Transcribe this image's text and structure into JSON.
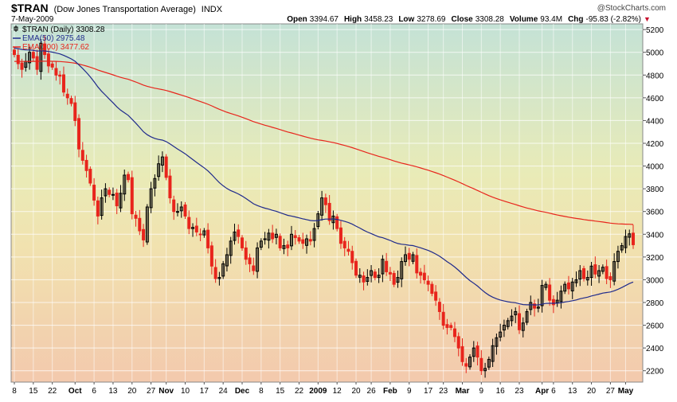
{
  "header": {
    "symbol": "$TRAN",
    "name": "(Dow Jones Transportation Average)",
    "exchange": "INDX",
    "date": "7-May-2009",
    "watermark": "@StockCharts.com",
    "quote": [
      {
        "label": "Open",
        "value": "3394.67"
      },
      {
        "label": "High",
        "value": "3458.23"
      },
      {
        "label": "Low",
        "value": "3278.69"
      },
      {
        "label": "Close",
        "value": "3308.28"
      },
      {
        "label": "Volume",
        "value": "93.4M"
      },
      {
        "label": "Chg",
        "value": "-95.83 (-2.82%)"
      }
    ],
    "chg_arrow": "▼"
  },
  "legend": [
    {
      "text": "$TRAN (Daily) 3308.28",
      "color": "#000000",
      "kind": "candle"
    },
    {
      "text": "EMA(50) 2975.48",
      "color": "#1f2a8c",
      "kind": "line"
    },
    {
      "text": "EMA(200) 3477.62",
      "color": "#e8251c",
      "kind": "line"
    }
  ],
  "chart_data": {
    "type": "line",
    "title": "$TRAN (Dow Jones Transportation Average) INDX",
    "ylim": [
      2100,
      5250
    ],
    "y_ticks": [
      2200,
      2400,
      2600,
      2800,
      3000,
      3200,
      3400,
      3600,
      3800,
      4000,
      4200,
      4400,
      4600,
      4800,
      5000,
      5200
    ],
    "x_labels": [
      {
        "text": "8",
        "i": 0
      },
      {
        "text": "15",
        "i": 5
      },
      {
        "text": "22",
        "i": 10
      },
      {
        "text": "Oct",
        "i": 16,
        "bold": true
      },
      {
        "text": "6",
        "i": 21
      },
      {
        "text": "13",
        "i": 26
      },
      {
        "text": "20",
        "i": 31
      },
      {
        "text": "27",
        "i": 36
      },
      {
        "text": "Nov",
        "i": 40,
        "bold": true
      },
      {
        "text": "10",
        "i": 45
      },
      {
        "text": "17",
        "i": 50
      },
      {
        "text": "24",
        "i": 55
      },
      {
        "text": "Dec",
        "i": 60,
        "bold": true
      },
      {
        "text": "8",
        "i": 65
      },
      {
        "text": "15",
        "i": 70
      },
      {
        "text": "22",
        "i": 75
      },
      {
        "text": "2009",
        "i": 80,
        "bold": true
      },
      {
        "text": "12",
        "i": 85
      },
      {
        "text": "20",
        "i": 90
      },
      {
        "text": "26",
        "i": 94
      },
      {
        "text": "Feb",
        "i": 99,
        "bold": true
      },
      {
        "text": "9",
        "i": 104
      },
      {
        "text": "17",
        "i": 109
      },
      {
        "text": "23",
        "i": 113
      },
      {
        "text": "Mar",
        "i": 118,
        "bold": true
      },
      {
        "text": "9",
        "i": 123
      },
      {
        "text": "16",
        "i": 128
      },
      {
        "text": "23",
        "i": 133
      },
      {
        "text": "Apr",
        "i": 139,
        "bold": true
      },
      {
        "text": "6",
        "i": 142
      },
      {
        "text": "13",
        "i": 147
      },
      {
        "text": "20",
        "i": 152
      },
      {
        "text": "27",
        "i": 157
      },
      {
        "text": "May",
        "i": 161,
        "bold": true
      }
    ],
    "series": [
      {
        "name": "$TRAN (Daily)",
        "kind": "candlestick",
        "close": [
          4980,
          4900,
          4850,
          4920,
          5000,
          4950,
          4850,
          5080,
          4980,
          4880,
          4870,
          4800,
          4790,
          4650,
          4600,
          4550,
          4400,
          4150,
          4050,
          3960,
          3850,
          3700,
          3560,
          3720,
          3800,
          3750,
          3750,
          3650,
          3760,
          3920,
          3880,
          3580,
          3540,
          3430,
          3350,
          3640,
          3800,
          3890,
          4020,
          4080,
          3900,
          3720,
          3600,
          3600,
          3640,
          3560,
          3450,
          3460,
          3420,
          3400,
          3430,
          3280,
          3120,
          3010,
          3020,
          3140,
          3220,
          3340,
          3420,
          3380,
          3280,
          3180,
          3140,
          3080,
          3280,
          3340,
          3360,
          3410,
          3360,
          3400,
          3280,
          3300,
          3280,
          3400,
          3370,
          3340,
          3320,
          3360,
          3340,
          3450,
          3580,
          3720,
          3660,
          3520,
          3560,
          3450,
          3320,
          3280,
          3250,
          3150,
          3040,
          3040,
          2980,
          3020,
          3080,
          3020,
          3040,
          3180,
          3070,
          3050,
          2960,
          3020,
          3160,
          3220,
          3180,
          3220,
          3060,
          3040,
          3000,
          2960,
          2880,
          2820,
          2720,
          2600,
          2580,
          2580,
          2500,
          2400,
          2280,
          2240,
          2320,
          2400,
          2320,
          2200,
          2220,
          2300,
          2420,
          2490,
          2540,
          2600,
          2640,
          2680,
          2720,
          2560,
          2620,
          2720,
          2800,
          2750,
          2760,
          2950,
          2960,
          2820,
          2780,
          2820,
          2900,
          2960,
          2920,
          2980,
          3000,
          3080,
          3010,
          3020,
          3120,
          3050,
          3080,
          3110,
          3010,
          3000,
          3160,
          3250,
          3300,
          3380,
          3404,
          3308
        ],
        "ema50_start": 5040,
        "ema200_start": 4920,
        "color_up": "#000000",
        "color_down": "#e8251c"
      },
      {
        "name": "EMA(50)",
        "kind": "ema",
        "period": 50,
        "color": "#1f2a8c"
      },
      {
        "name": "EMA(200)",
        "kind": "ema",
        "period": 200,
        "color": "#e8251c"
      }
    ],
    "grid": true,
    "legend_position": "top-left"
  }
}
